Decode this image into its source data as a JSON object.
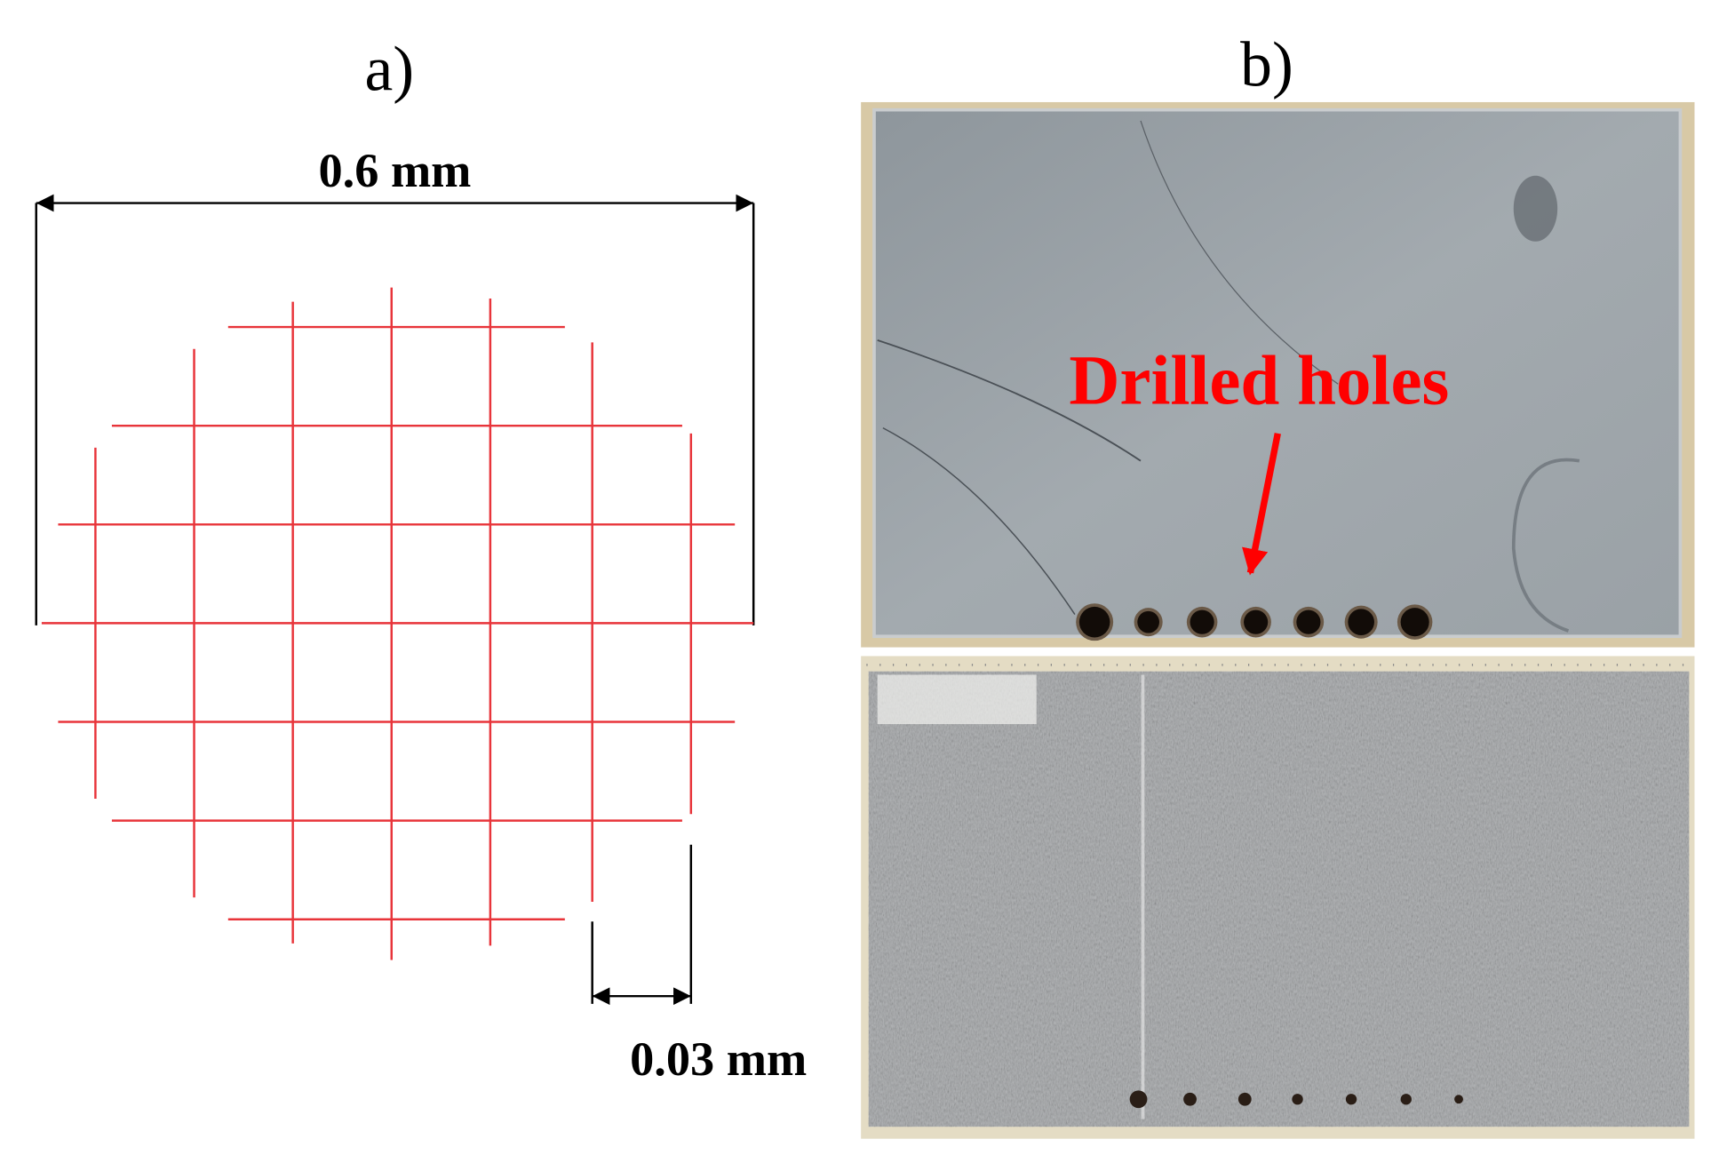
{
  "panels": [
    {
      "label": "a)",
      "width_label": "0.6 mm",
      "spacing_label": "0.03 mm"
    },
    {
      "label": "b)",
      "annotation": "Drilled holes"
    }
  ]
}
